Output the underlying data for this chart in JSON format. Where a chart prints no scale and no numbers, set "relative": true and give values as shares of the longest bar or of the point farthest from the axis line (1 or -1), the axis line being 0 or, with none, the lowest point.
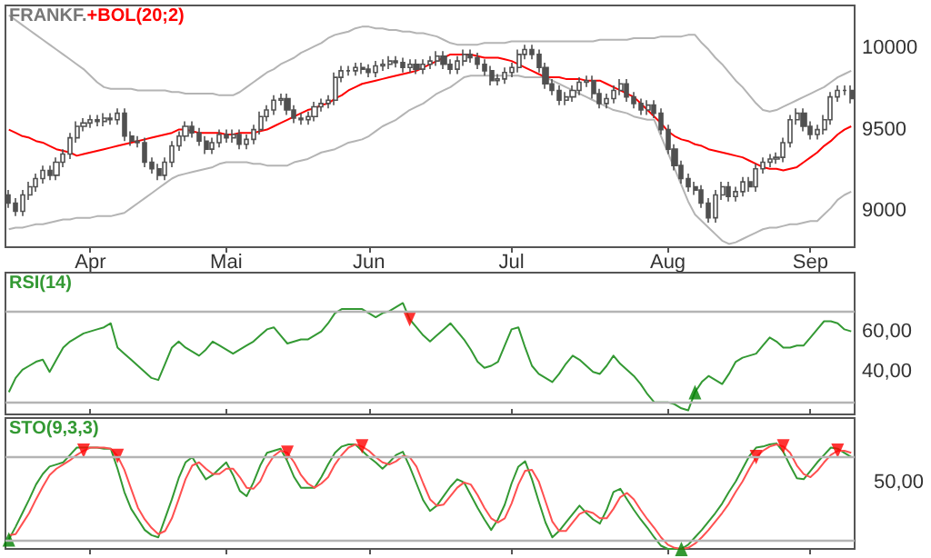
{
  "chart_data": [
    {
      "type": "candlestick",
      "title": "FRANKF.",
      "color": "#505050",
      "categories": [
        null,
        null,
        null,
        null,
        null,
        null,
        null,
        null,
        null,
        null,
        null,
        null,
        "Apr",
        null,
        null,
        null,
        null,
        null,
        null,
        null,
        null,
        null,
        null,
        null,
        null,
        null,
        null,
        null,
        null,
        null,
        null,
        null,
        "Mai",
        null,
        null,
        null,
        null,
        null,
        null,
        null,
        null,
        null,
        null,
        null,
        null,
        null,
        null,
        null,
        null,
        null,
        null,
        null,
        null,
        "Jun",
        null,
        null,
        null,
        null,
        null,
        null,
        null,
        null,
        null,
        null,
        null,
        null,
        null,
        null,
        null,
        null,
        null,
        null,
        null,
        null,
        "Jul",
        null,
        null,
        null,
        null,
        null,
        null,
        null,
        null,
        null,
        null,
        null,
        null,
        null,
        null,
        null,
        null,
        null,
        null,
        null,
        null,
        null,
        null,
        "Aug",
        null,
        null,
        null,
        null,
        null,
        null,
        null,
        null,
        null,
        null,
        null,
        null,
        null,
        null,
        null,
        null,
        null,
        null,
        null,
        null,
        "Sep",
        null,
        null,
        null,
        null,
        null,
        null
      ],
      "ohlc": [
        [
          9100,
          9130,
          9020,
          9050
        ],
        [
          9050,
          9080,
          8970,
          9000
        ],
        [
          9000,
          9130,
          8970,
          9100
        ],
        [
          9100,
          9180,
          9070,
          9150
        ],
        [
          9150,
          9230,
          9120,
          9200
        ],
        [
          9200,
          9280,
          9170,
          9250
        ],
        [
          9250,
          9280,
          9190,
          9220
        ],
        [
          9220,
          9330,
          9190,
          9300
        ],
        [
          9300,
          9380,
          9270,
          9350
        ],
        [
          9350,
          9480,
          9320,
          9450
        ],
        [
          9450,
          9550,
          9420,
          9520
        ],
        [
          9520,
          9570,
          9490,
          9540
        ],
        [
          9540,
          9590,
          9510,
          9560
        ],
        [
          9560,
          9590,
          9520,
          9550
        ],
        [
          9550,
          9600,
          9520,
          9570
        ],
        [
          9570,
          9600,
          9530,
          9560
        ],
        [
          9560,
          9630,
          9530,
          9600
        ],
        [
          9600,
          9630,
          9430,
          9460
        ],
        [
          9460,
          9490,
          9400,
          9430
        ],
        [
          9430,
          9460,
          9390,
          9420
        ],
        [
          9420,
          9450,
          9270,
          9300
        ],
        [
          9300,
          9330,
          9230,
          9260
        ],
        [
          9260,
          9290,
          9190,
          9220
        ],
        [
          9220,
          9330,
          9190,
          9300
        ],
        [
          9300,
          9430,
          9270,
          9400
        ],
        [
          9400,
          9490,
          9370,
          9460
        ],
        [
          9460,
          9550,
          9430,
          9520
        ],
        [
          9520,
          9550,
          9450,
          9480
        ],
        [
          9480,
          9510,
          9400,
          9430
        ],
        [
          9430,
          9460,
          9350,
          9380
        ],
        [
          9380,
          9450,
          9350,
          9420
        ],
        [
          9420,
          9500,
          9390,
          9470
        ],
        [
          9470,
          9500,
          9420,
          9450
        ],
        [
          9450,
          9500,
          9420,
          9470
        ],
        [
          9470,
          9500,
          9380,
          9410
        ],
        [
          9410,
          9470,
          9380,
          9440
        ],
        [
          9440,
          9530,
          9410,
          9500
        ],
        [
          9500,
          9610,
          9470,
          9580
        ],
        [
          9580,
          9650,
          9550,
          9620
        ],
        [
          9620,
          9710,
          9590,
          9680
        ],
        [
          9680,
          9720,
          9650,
          9690
        ],
        [
          9690,
          9720,
          9590,
          9620
        ],
        [
          9620,
          9650,
          9540,
          9570
        ],
        [
          9570,
          9600,
          9530,
          9560
        ],
        [
          9560,
          9610,
          9530,
          9580
        ],
        [
          9580,
          9670,
          9550,
          9640
        ],
        [
          9640,
          9690,
          9610,
          9660
        ],
        [
          9660,
          9710,
          9630,
          9680
        ],
        [
          9680,
          9850,
          9650,
          9820
        ],
        [
          9820,
          9890,
          9790,
          9860
        ],
        [
          9860,
          9890,
          9830,
          9860
        ],
        [
          9860,
          9910,
          9830,
          9880
        ],
        [
          9880,
          9910,
          9840,
          9870
        ],
        [
          9870,
          9900,
          9820,
          9850
        ],
        [
          9850,
          9920,
          9820,
          9890
        ],
        [
          9890,
          9930,
          9860,
          9900
        ],
        [
          9900,
          9950,
          9870,
          9920
        ],
        [
          9920,
          9950,
          9880,
          9910
        ],
        [
          9910,
          9940,
          9850,
          9880
        ],
        [
          9880,
          9930,
          9850,
          9900
        ],
        [
          9900,
          9930,
          9840,
          9870
        ],
        [
          9870,
          9930,
          9840,
          9900
        ],
        [
          9900,
          9950,
          9870,
          9920
        ],
        [
          9920,
          9980,
          9890,
          9950
        ],
        [
          9950,
          9980,
          9870,
          9900
        ],
        [
          9900,
          9930,
          9840,
          9870
        ],
        [
          9870,
          9950,
          9840,
          9920
        ],
        [
          9920,
          9990,
          9890,
          9960
        ],
        [
          9960,
          9990,
          9910,
          9940
        ],
        [
          9940,
          9970,
          9870,
          9900
        ],
        [
          9900,
          9930,
          9830,
          9860
        ],
        [
          9860,
          9890,
          9770,
          9800
        ],
        [
          9800,
          9840,
          9770,
          9810
        ],
        [
          9810,
          9880,
          9780,
          9850
        ],
        [
          9850,
          9910,
          9820,
          9880
        ],
        [
          9880,
          9990,
          9850,
          9960
        ],
        [
          9960,
          10020,
          9930,
          9990
        ],
        [
          9990,
          10020,
          9930,
          9960
        ],
        [
          9960,
          9990,
          9850,
          9880
        ],
        [
          9880,
          9910,
          9750,
          9780
        ],
        [
          9780,
          9810,
          9710,
          9740
        ],
        [
          9740,
          9770,
          9650,
          9680
        ],
        [
          9680,
          9730,
          9650,
          9700
        ],
        [
          9700,
          9770,
          9670,
          9740
        ],
        [
          9740,
          9820,
          9710,
          9790
        ],
        [
          9790,
          9830,
          9760,
          9800
        ],
        [
          9800,
          9830,
          9690,
          9720
        ],
        [
          9720,
          9750,
          9630,
          9660
        ],
        [
          9660,
          9720,
          9630,
          9690
        ],
        [
          9690,
          9770,
          9660,
          9740
        ],
        [
          9740,
          9810,
          9710,
          9780
        ],
        [
          9780,
          9810,
          9670,
          9700
        ],
        [
          9700,
          9730,
          9630,
          9660
        ],
        [
          9660,
          9690,
          9590,
          9620
        ],
        [
          9620,
          9680,
          9590,
          9650
        ],
        [
          9650,
          9680,
          9570,
          9600
        ],
        [
          9600,
          9630,
          9470,
          9500
        ],
        [
          9500,
          9530,
          9350,
          9380
        ],
        [
          9380,
          9410,
          9250,
          9280
        ],
        [
          9280,
          9310,
          9170,
          9200
        ],
        [
          9200,
          9230,
          9120,
          9150
        ],
        [
          9150,
          9180,
          9100,
          9130
        ],
        [
          9130,
          9160,
          9020,
          9050
        ],
        [
          9050,
          9080,
          8930,
          8960
        ],
        [
          8960,
          9130,
          8930,
          9100
        ],
        [
          9100,
          9180,
          9070,
          9150
        ],
        [
          9150,
          9180,
          9060,
          9090
        ],
        [
          9090,
          9150,
          9060,
          9120
        ],
        [
          9120,
          9210,
          9090,
          9180
        ],
        [
          9180,
          9210,
          9120,
          9150
        ],
        [
          9150,
          9290,
          9120,
          9260
        ],
        [
          9260,
          9330,
          9230,
          9300
        ],
        [
          9300,
          9350,
          9270,
          9320
        ],
        [
          9320,
          9360,
          9290,
          9330
        ],
        [
          9330,
          9450,
          9300,
          9420
        ],
        [
          9420,
          9590,
          9390,
          9560
        ],
        [
          9560,
          9630,
          9530,
          9600
        ],
        [
          9600,
          9630,
          9490,
          9520
        ],
        [
          9520,
          9550,
          9440,
          9470
        ],
        [
          9470,
          9530,
          9440,
          9500
        ],
        [
          9500,
          9590,
          9470,
          9560
        ],
        [
          9560,
          9730,
          9530,
          9700
        ],
        [
          9700,
          9770,
          9670,
          9740
        ],
        [
          9740,
          9770,
          9710,
          9740
        ],
        [
          9740,
          9770,
          9660,
          9690
        ]
      ],
      "ylim": [
        8780,
        10260
      ],
      "yticks": [
        9000,
        9500,
        10000
      ],
      "series": [
        {
          "type": "line",
          "color": "#b4b4b4",
          "values": [
            10200,
            10170,
            10140,
            10110,
            10080,
            10050,
            10020,
            9990,
            9960,
            9930,
            9900,
            9870,
            9830,
            9790,
            9760,
            9750,
            9750,
            9750,
            9750,
            9740,
            9740,
            9740,
            9740,
            9740,
            9730,
            9730,
            9720,
            9720,
            9720,
            9720,
            9720,
            9710,
            9710,
            9710,
            9730,
            9760,
            9790,
            9820,
            9850,
            9870,
            9900,
            9920,
            9940,
            9970,
            9990,
            10010,
            10030,
            10060,
            10080,
            10090,
            10100,
            10120,
            10130,
            10130,
            10120,
            10120,
            10110,
            10110,
            10100,
            10100,
            10090,
            10090,
            10080,
            10070,
            10050,
            10030,
            10020,
            10020,
            10020,
            10020,
            10030,
            10030,
            10030,
            10030,
            10040,
            10040,
            10040,
            10040,
            10040,
            10040,
            10040,
            10040,
            10040,
            10040,
            10040,
            10040,
            10040,
            10050,
            10050,
            10050,
            10050,
            10050,
            10060,
            10060,
            10060,
            10060,
            10070,
            10070,
            10070,
            10070,
            10080,
            10080,
            10030,
            9990,
            9940,
            9900,
            9850,
            9800,
            9760,
            9710,
            9660,
            9620,
            9610,
            9620,
            9640,
            9660,
            9680,
            9700,
            9720,
            9740,
            9760,
            9790,
            9820,
            9840,
            9860
          ]
        },
        {
          "type": "line",
          "color": "#b4b4b4",
          "values": [
            8890,
            8900,
            8900,
            8910,
            8920,
            8920,
            8930,
            8940,
            8950,
            8950,
            8960,
            8960,
            8960,
            8970,
            8970,
            8970,
            8980,
            8990,
            9020,
            9050,
            9080,
            9110,
            9140,
            9170,
            9200,
            9220,
            9230,
            9240,
            9250,
            9260,
            9270,
            9290,
            9300,
            9300,
            9300,
            9300,
            9290,
            9290,
            9280,
            9280,
            9280,
            9280,
            9300,
            9310,
            9320,
            9340,
            9360,
            9370,
            9380,
            9400,
            9420,
            9430,
            9440,
            9460,
            9490,
            9520,
            9540,
            9560,
            9590,
            9620,
            9640,
            9660,
            9690,
            9720,
            9740,
            9760,
            9790,
            9820,
            9830,
            9830,
            9830,
            9830,
            9830,
            9830,
            9830,
            9830,
            9820,
            9820,
            9820,
            9820,
            9800,
            9780,
            9760,
            9740,
            9720,
            9700,
            9680,
            9660,
            9640,
            9620,
            9610,
            9600,
            9580,
            9570,
            9560,
            9560,
            9460,
            9360,
            9260,
            9160,
            9060,
            8980,
            8940,
            8900,
            8860,
            8820,
            8800,
            8810,
            8830,
            8850,
            8870,
            8890,
            8900,
            8900,
            8910,
            8920,
            8920,
            8930,
            8940,
            8940,
            8980,
            9020,
            9070,
            9100,
            9120
          ]
        },
        {
          "type": "line",
          "name": "+BOL(20;2)",
          "color": "#ff0000",
          "values": [
            9500,
            9480,
            9460,
            9450,
            9430,
            9420,
            9400,
            9380,
            9370,
            9360,
            9340,
            9350,
            9360,
            9370,
            9380,
            9390,
            9400,
            9410,
            9420,
            9430,
            9440,
            9450,
            9460,
            9470,
            9480,
            9500,
            9500,
            9490,
            9480,
            9480,
            9480,
            9480,
            9470,
            9470,
            9480,
            9480,
            9480,
            9490,
            9500,
            9520,
            9540,
            9560,
            9580,
            9600,
            9620,
            9630,
            9650,
            9660,
            9690,
            9710,
            9740,
            9760,
            9780,
            9790,
            9800,
            9810,
            9820,
            9830,
            9840,
            9850,
            9860,
            9880,
            9900,
            9920,
            9940,
            9960,
            9960,
            9960,
            9960,
            9950,
            9940,
            9940,
            9940,
            9930,
            9920,
            9900,
            9880,
            9860,
            9840,
            9820,
            9820,
            9820,
            9810,
            9810,
            9810,
            9800,
            9800,
            9800,
            9780,
            9760,
            9740,
            9720,
            9700,
            9660,
            9620,
            9580,
            9540,
            9490,
            9460,
            9440,
            9430,
            9410,
            9400,
            9380,
            9370,
            9360,
            9350,
            9340,
            9330,
            9310,
            9290,
            9270,
            9260,
            9260,
            9250,
            9260,
            9270,
            9300,
            9330,
            9360,
            9400,
            9430,
            9470,
            9500,
            9520
          ]
        }
      ]
    },
    {
      "type": "line",
      "tick_labels": "y",
      "ylim": [
        19,
        89
      ],
      "yticks": [
        {
          "value": 40,
          "label": "40,00"
        },
        {
          "value": 60,
          "label": "60,00"
        }
      ],
      "ref_lines": [
        {
          "axis": "y",
          "value": 70,
          "color": "#b4b4b4"
        },
        {
          "axis": "y",
          "value": 25,
          "color": "#b4b4b4"
        }
      ],
      "series": [
        {
          "name": "RSI(14)",
          "color": "#339933",
          "values": [
            30,
            37,
            41,
            43,
            45,
            46,
            40,
            46,
            52,
            55,
            57,
            59,
            60,
            61,
            62,
            64,
            52,
            49,
            46,
            43,
            40,
            37,
            36,
            44,
            52,
            55,
            52,
            50,
            48,
            51,
            55,
            53,
            51,
            49,
            51,
            53,
            55,
            58,
            61,
            62,
            58,
            54,
            55,
            56,
            56,
            58,
            60,
            64,
            69,
            71,
            71,
            71,
            71,
            69,
            67,
            69,
            70,
            72,
            74,
            66,
            62,
            58,
            55,
            58,
            61,
            64,
            60,
            56,
            51,
            45,
            42,
            43,
            45,
            53,
            61,
            62,
            52,
            43,
            39,
            37,
            35,
            39,
            44,
            48,
            46,
            43,
            40,
            39,
            43,
            48,
            44,
            41,
            38,
            34,
            29,
            25,
            25,
            25,
            24,
            22,
            21,
            30,
            35,
            38,
            36,
            34,
            39,
            45,
            47,
            48,
            49,
            53,
            57,
            55,
            52,
            52,
            53,
            53,
            57,
            61,
            65,
            65,
            64,
            61,
            60
          ]
        },
        {
          "type": "scatter",
          "marker": "triangle",
          "color": "#ff0000",
          "values": [
            null,
            null,
            null,
            null,
            null,
            null,
            null,
            null,
            null,
            null,
            null,
            null,
            null,
            null,
            null,
            null,
            null,
            null,
            null,
            null,
            null,
            null,
            null,
            null,
            null,
            null,
            null,
            null,
            null,
            null,
            null,
            null,
            null,
            null,
            null,
            null,
            null,
            null,
            null,
            null,
            null,
            null,
            null,
            null,
            null,
            null,
            null,
            null,
            null,
            null,
            null,
            null,
            null,
            null,
            null,
            null,
            null,
            null,
            null,
            66,
            null,
            null,
            null,
            null,
            null,
            null,
            null,
            null,
            null,
            null,
            null,
            null,
            null,
            null,
            null,
            null,
            null,
            null,
            null,
            null,
            null,
            null,
            null,
            null,
            null,
            null,
            null,
            null,
            null,
            null,
            null,
            null,
            null,
            null,
            null,
            null,
            null,
            null,
            null,
            null,
            null,
            null,
            null,
            null,
            null,
            null,
            null,
            null,
            null,
            null,
            null,
            null,
            null,
            null,
            null,
            null,
            null,
            null,
            null,
            null,
            null,
            null,
            null,
            null,
            null
          ]
        },
        {
          "type": "scatter",
          "marker": "triangle",
          "color": "#008000",
          "values": [
            null,
            null,
            null,
            null,
            null,
            null,
            null,
            null,
            null,
            null,
            null,
            null,
            null,
            null,
            null,
            null,
            null,
            null,
            null,
            null,
            null,
            null,
            null,
            null,
            null,
            null,
            null,
            null,
            null,
            null,
            null,
            null,
            null,
            null,
            null,
            null,
            null,
            null,
            null,
            null,
            null,
            null,
            null,
            null,
            null,
            null,
            null,
            null,
            null,
            null,
            null,
            null,
            null,
            null,
            null,
            null,
            null,
            null,
            null,
            null,
            null,
            null,
            null,
            null,
            null,
            null,
            null,
            null,
            null,
            null,
            null,
            null,
            null,
            null,
            null,
            null,
            null,
            null,
            null,
            null,
            null,
            null,
            null,
            null,
            null,
            null,
            null,
            null,
            null,
            null,
            null,
            null,
            null,
            null,
            null,
            null,
            null,
            null,
            null,
            null,
            null,
            30,
            null,
            null,
            null,
            null,
            null,
            null,
            null,
            null,
            null,
            null,
            null,
            null,
            null,
            null,
            null,
            null,
            null,
            null,
            null,
            null,
            null,
            null,
            null
          ]
        }
      ]
    },
    {
      "type": "line",
      "tick_labels": "y",
      "relative": true,
      "annotations": [
        "50,00"
      ],
      "ref_lines": [
        {
          "axis": "y",
          "value": 0.87,
          "color": "#b4b4b4"
        },
        {
          "axis": "y",
          "value": 0.08,
          "color": "#b4b4b4"
        }
      ],
      "series": [
        {
          "name": "STO(9,3,3)",
          "color": "#339933",
          "values": [
            0.09,
            0.21,
            0.34,
            0.47,
            0.61,
            0.71,
            0.78,
            0.8,
            0.82,
            0.89,
            0.96,
            0.96,
            0.96,
            0.96,
            0.95,
            0.95,
            0.76,
            0.54,
            0.38,
            0.28,
            0.18,
            0.13,
            0.11,
            0.29,
            0.47,
            0.67,
            0.82,
            0.87,
            0.76,
            0.66,
            0.7,
            0.76,
            0.82,
            0.7,
            0.55,
            0.5,
            0.63,
            0.79,
            0.91,
            0.93,
            0.95,
            0.83,
            0.68,
            0.58,
            0.58,
            0.58,
            0.68,
            0.8,
            0.91,
            0.97,
            0.99,
            0.99,
            0.93,
            0.87,
            0.82,
            0.76,
            0.82,
            0.89,
            0.92,
            0.78,
            0.62,
            0.46,
            0.36,
            0.41,
            0.5,
            0.59,
            0.66,
            0.63,
            0.51,
            0.39,
            0.28,
            0.18,
            0.28,
            0.42,
            0.62,
            0.78,
            0.83,
            0.66,
            0.45,
            0.25,
            0.11,
            0.17,
            0.25,
            0.33,
            0.41,
            0.34,
            0.28,
            0.24,
            0.37,
            0.54,
            0.57,
            0.47,
            0.37,
            0.28,
            0.2,
            0.11,
            0.03,
            0,
            0,
            0,
            0.04,
            0.11,
            0.18,
            0.26,
            0.34,
            0.43,
            0.54,
            0.64,
            0.76,
            0.88,
            0.96,
            0.97,
            0.99,
            1,
            0.92,
            0.79,
            0.67,
            0.66,
            0.74,
            0.82,
            0.89,
            0.96,
            0.95,
            0.91,
            0.87
          ]
        },
        {
          "color": "#ff5050",
          "values": [
            0.13,
            0.14,
            0.24,
            0.34,
            0.47,
            0.59,
            0.7,
            0.76,
            0.8,
            0.84,
            0.89,
            0.93,
            0.96,
            0.96,
            0.96,
            0.95,
            0.88,
            0.75,
            0.57,
            0.39,
            0.28,
            0.2,
            0.14,
            0.17,
            0.29,
            0.47,
            0.66,
            0.79,
            0.82,
            0.76,
            0.71,
            0.71,
            0.76,
            0.76,
            0.68,
            0.58,
            0.57,
            0.64,
            0.78,
            0.88,
            0.93,
            0.91,
            0.82,
            0.7,
            0.62,
            0.58,
            0.62,
            0.68,
            0.8,
            0.89,
            0.96,
            0.99,
            0.97,
            0.93,
            0.87,
            0.82,
            0.8,
            0.83,
            0.88,
            0.87,
            0.78,
            0.62,
            0.47,
            0.41,
            0.42,
            0.5,
            0.58,
            0.63,
            0.61,
            0.51,
            0.39,
            0.29,
            0.25,
            0.29,
            0.43,
            0.61,
            0.74,
            0.75,
            0.64,
            0.45,
            0.26,
            0.17,
            0.17,
            0.25,
            0.33,
            0.36,
            0.34,
            0.29,
            0.29,
            0.38,
            0.49,
            0.53,
            0.47,
            0.37,
            0.28,
            0.2,
            0.11,
            0.04,
            0.01,
            0,
            0.01,
            0.05,
            0.11,
            0.18,
            0.26,
            0.34,
            0.43,
            0.54,
            0.64,
            0.76,
            0.87,
            0.93,
            0.97,
            0.99,
            0.97,
            0.91,
            0.79,
            0.71,
            0.68,
            0.74,
            0.82,
            0.89,
            0.93,
            0.93,
            0.91
          ]
        },
        {
          "type": "scatter",
          "marker": "triangle",
          "color": "#ff0000",
          "values": [
            null,
            null,
            null,
            null,
            null,
            null,
            null,
            null,
            null,
            null,
            null,
            0.93,
            null,
            null,
            null,
            null,
            0.88,
            null,
            null,
            null,
            null,
            null,
            null,
            null,
            null,
            null,
            null,
            null,
            null,
            null,
            null,
            null,
            null,
            null,
            null,
            null,
            null,
            null,
            null,
            null,
            null,
            0.91,
            null,
            null,
            null,
            null,
            null,
            null,
            null,
            null,
            null,
            null,
            0.97,
            null,
            null,
            null,
            null,
            null,
            null,
            null,
            null,
            null,
            null,
            null,
            null,
            null,
            null,
            null,
            null,
            null,
            null,
            null,
            null,
            null,
            null,
            null,
            null,
            null,
            null,
            null,
            null,
            null,
            null,
            null,
            null,
            null,
            null,
            null,
            null,
            null,
            null,
            null,
            null,
            null,
            null,
            null,
            null,
            null,
            null,
            null,
            null,
            null,
            null,
            null,
            null,
            null,
            null,
            null,
            null,
            null,
            0.87,
            null,
            null,
            null,
            0.97,
            null,
            null,
            null,
            null,
            null,
            null,
            null,
            0.93,
            null,
            null
          ]
        },
        {
          "type": "scatter",
          "marker": "triangle",
          "color": "#008000",
          "values": [
            0.09,
            null,
            null,
            null,
            null,
            null,
            null,
            null,
            null,
            null,
            null,
            null,
            null,
            null,
            null,
            null,
            null,
            null,
            null,
            null,
            null,
            null,
            null,
            null,
            null,
            null,
            null,
            null,
            null,
            null,
            null,
            null,
            null,
            null,
            null,
            null,
            null,
            null,
            null,
            null,
            null,
            null,
            null,
            null,
            null,
            null,
            null,
            null,
            null,
            null,
            null,
            null,
            null,
            null,
            null,
            null,
            null,
            null,
            null,
            null,
            null,
            null,
            null,
            null,
            null,
            null,
            null,
            null,
            null,
            null,
            null,
            null,
            null,
            null,
            null,
            null,
            null,
            null,
            null,
            null,
            null,
            null,
            null,
            null,
            null,
            null,
            null,
            null,
            null,
            null,
            null,
            null,
            null,
            null,
            null,
            null,
            null,
            null,
            null,
            0,
            null,
            null,
            null,
            null,
            null,
            null,
            null,
            null,
            null,
            null,
            null,
            null,
            null,
            null,
            null,
            null,
            null,
            null,
            null,
            null,
            null,
            null,
            null,
            null,
            null
          ]
        }
      ]
    }
  ]
}
